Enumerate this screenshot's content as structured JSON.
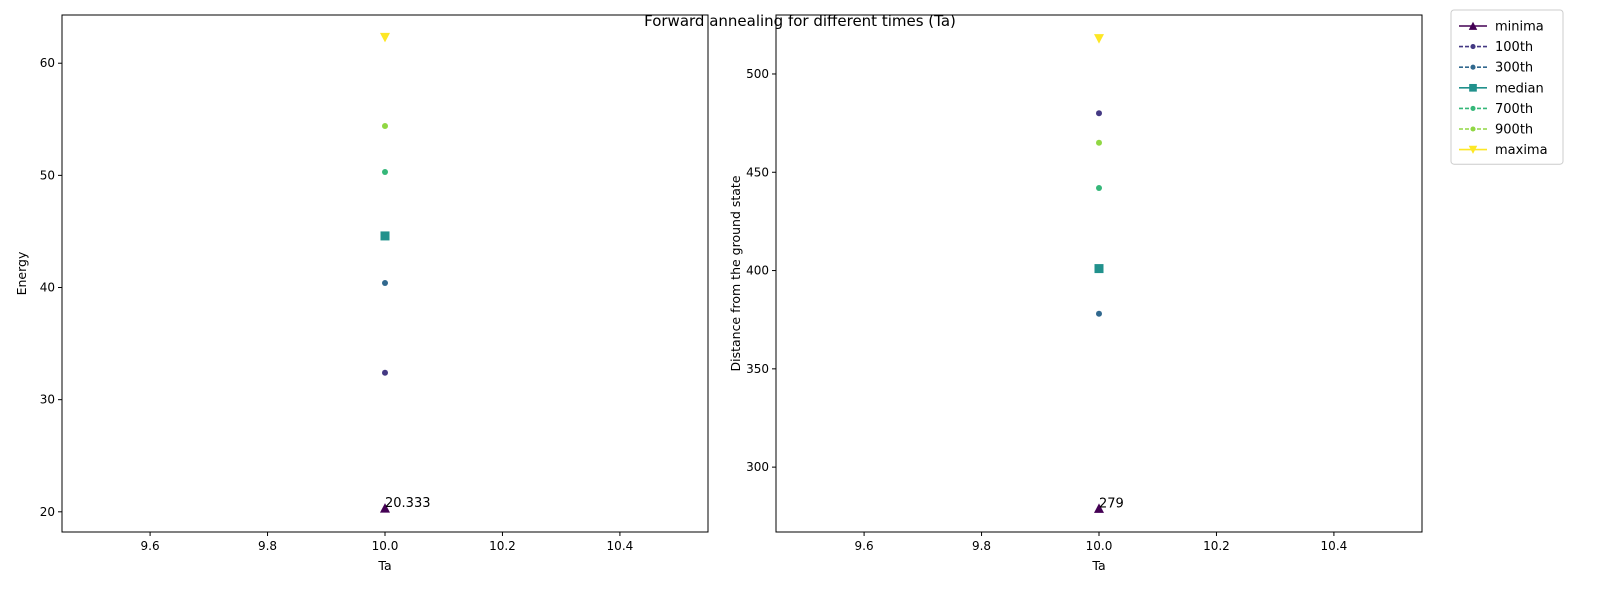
{
  "title": "Forward annealing for different times (Ta)",
  "legend": {
    "placement": "outside-right",
    "entries": [
      {
        "name": "minima",
        "color": "#440154",
        "marker": "triangle-up",
        "line": "solid"
      },
      {
        "name": "100th",
        "color": "#443983",
        "marker": "circle",
        "line": "dashed"
      },
      {
        "name": "300th",
        "color": "#31688e",
        "marker": "circle",
        "line": "dashed"
      },
      {
        "name": "median",
        "color": "#21918c",
        "marker": "square",
        "line": "solid"
      },
      {
        "name": "700th",
        "color": "#35b779",
        "marker": "circle",
        "line": "dashed"
      },
      {
        "name": "900th",
        "color": "#90d743",
        "marker": "circle",
        "line": "dashed"
      },
      {
        "name": "maxima",
        "color": "#fde725",
        "marker": "triangle-down",
        "line": "solid"
      }
    ]
  },
  "chart_data": [
    {
      "type": "scatter",
      "xlabel": "Ta",
      "ylabel": "Energy",
      "xlim": [
        9.45,
        10.55
      ],
      "ylim": [
        18.2,
        64.3
      ],
      "xticks": [
        9.6,
        9.8,
        10.0,
        10.2,
        10.4
      ],
      "xtick_labels": [
        "9.6",
        "9.8",
        "10.0",
        "10.2",
        "10.4"
      ],
      "yticks": [
        20,
        30,
        40,
        50,
        60
      ],
      "ytick_labels": [
        "20",
        "30",
        "40",
        "50",
        "60"
      ],
      "grid": false,
      "series": [
        {
          "name": "minima",
          "x": [
            10.0
          ],
          "y": [
            20.333
          ]
        },
        {
          "name": "100th",
          "x": [
            10.0
          ],
          "y": [
            32.4
          ]
        },
        {
          "name": "300th",
          "x": [
            10.0
          ],
          "y": [
            40.4
          ]
        },
        {
          "name": "median",
          "x": [
            10.0
          ],
          "y": [
            44.6
          ]
        },
        {
          "name": "700th",
          "x": [
            10.0
          ],
          "y": [
            50.3
          ]
        },
        {
          "name": "900th",
          "x": [
            10.0
          ],
          "y": [
            54.4
          ]
        },
        {
          "name": "maxima",
          "x": [
            10.0
          ],
          "y": [
            62.3
          ]
        }
      ],
      "annotation": {
        "text": "20.333",
        "x": 10.0,
        "y": 20.333
      }
    },
    {
      "type": "scatter",
      "xlabel": "Ta",
      "ylabel": "Distance from the ground state",
      "xlim": [
        9.45,
        10.55
      ],
      "ylim": [
        267.0,
        530.0
      ],
      "xticks": [
        9.6,
        9.8,
        10.0,
        10.2,
        10.4
      ],
      "xtick_labels": [
        "9.6",
        "9.8",
        "10.0",
        "10.2",
        "10.4"
      ],
      "yticks": [
        300,
        350,
        400,
        450,
        500
      ],
      "ytick_labels": [
        "300",
        "350",
        "400",
        "450",
        "500"
      ],
      "grid": false,
      "series": [
        {
          "name": "minima",
          "x": [
            10.0
          ],
          "y": [
            279
          ]
        },
        {
          "name": "100th",
          "x": [
            10.0
          ],
          "y": [
            480
          ]
        },
        {
          "name": "300th",
          "x": [
            10.0
          ],
          "y": [
            378
          ]
        },
        {
          "name": "median",
          "x": [
            10.0
          ],
          "y": [
            401
          ]
        },
        {
          "name": "700th",
          "x": [
            10.0
          ],
          "y": [
            442
          ]
        },
        {
          "name": "900th",
          "x": [
            10.0
          ],
          "y": [
            465
          ]
        },
        {
          "name": "maxima",
          "x": [
            10.0
          ],
          "y": [
            518
          ]
        }
      ],
      "annotation": {
        "text": "279",
        "x": 10.0,
        "y": 279
      }
    }
  ]
}
